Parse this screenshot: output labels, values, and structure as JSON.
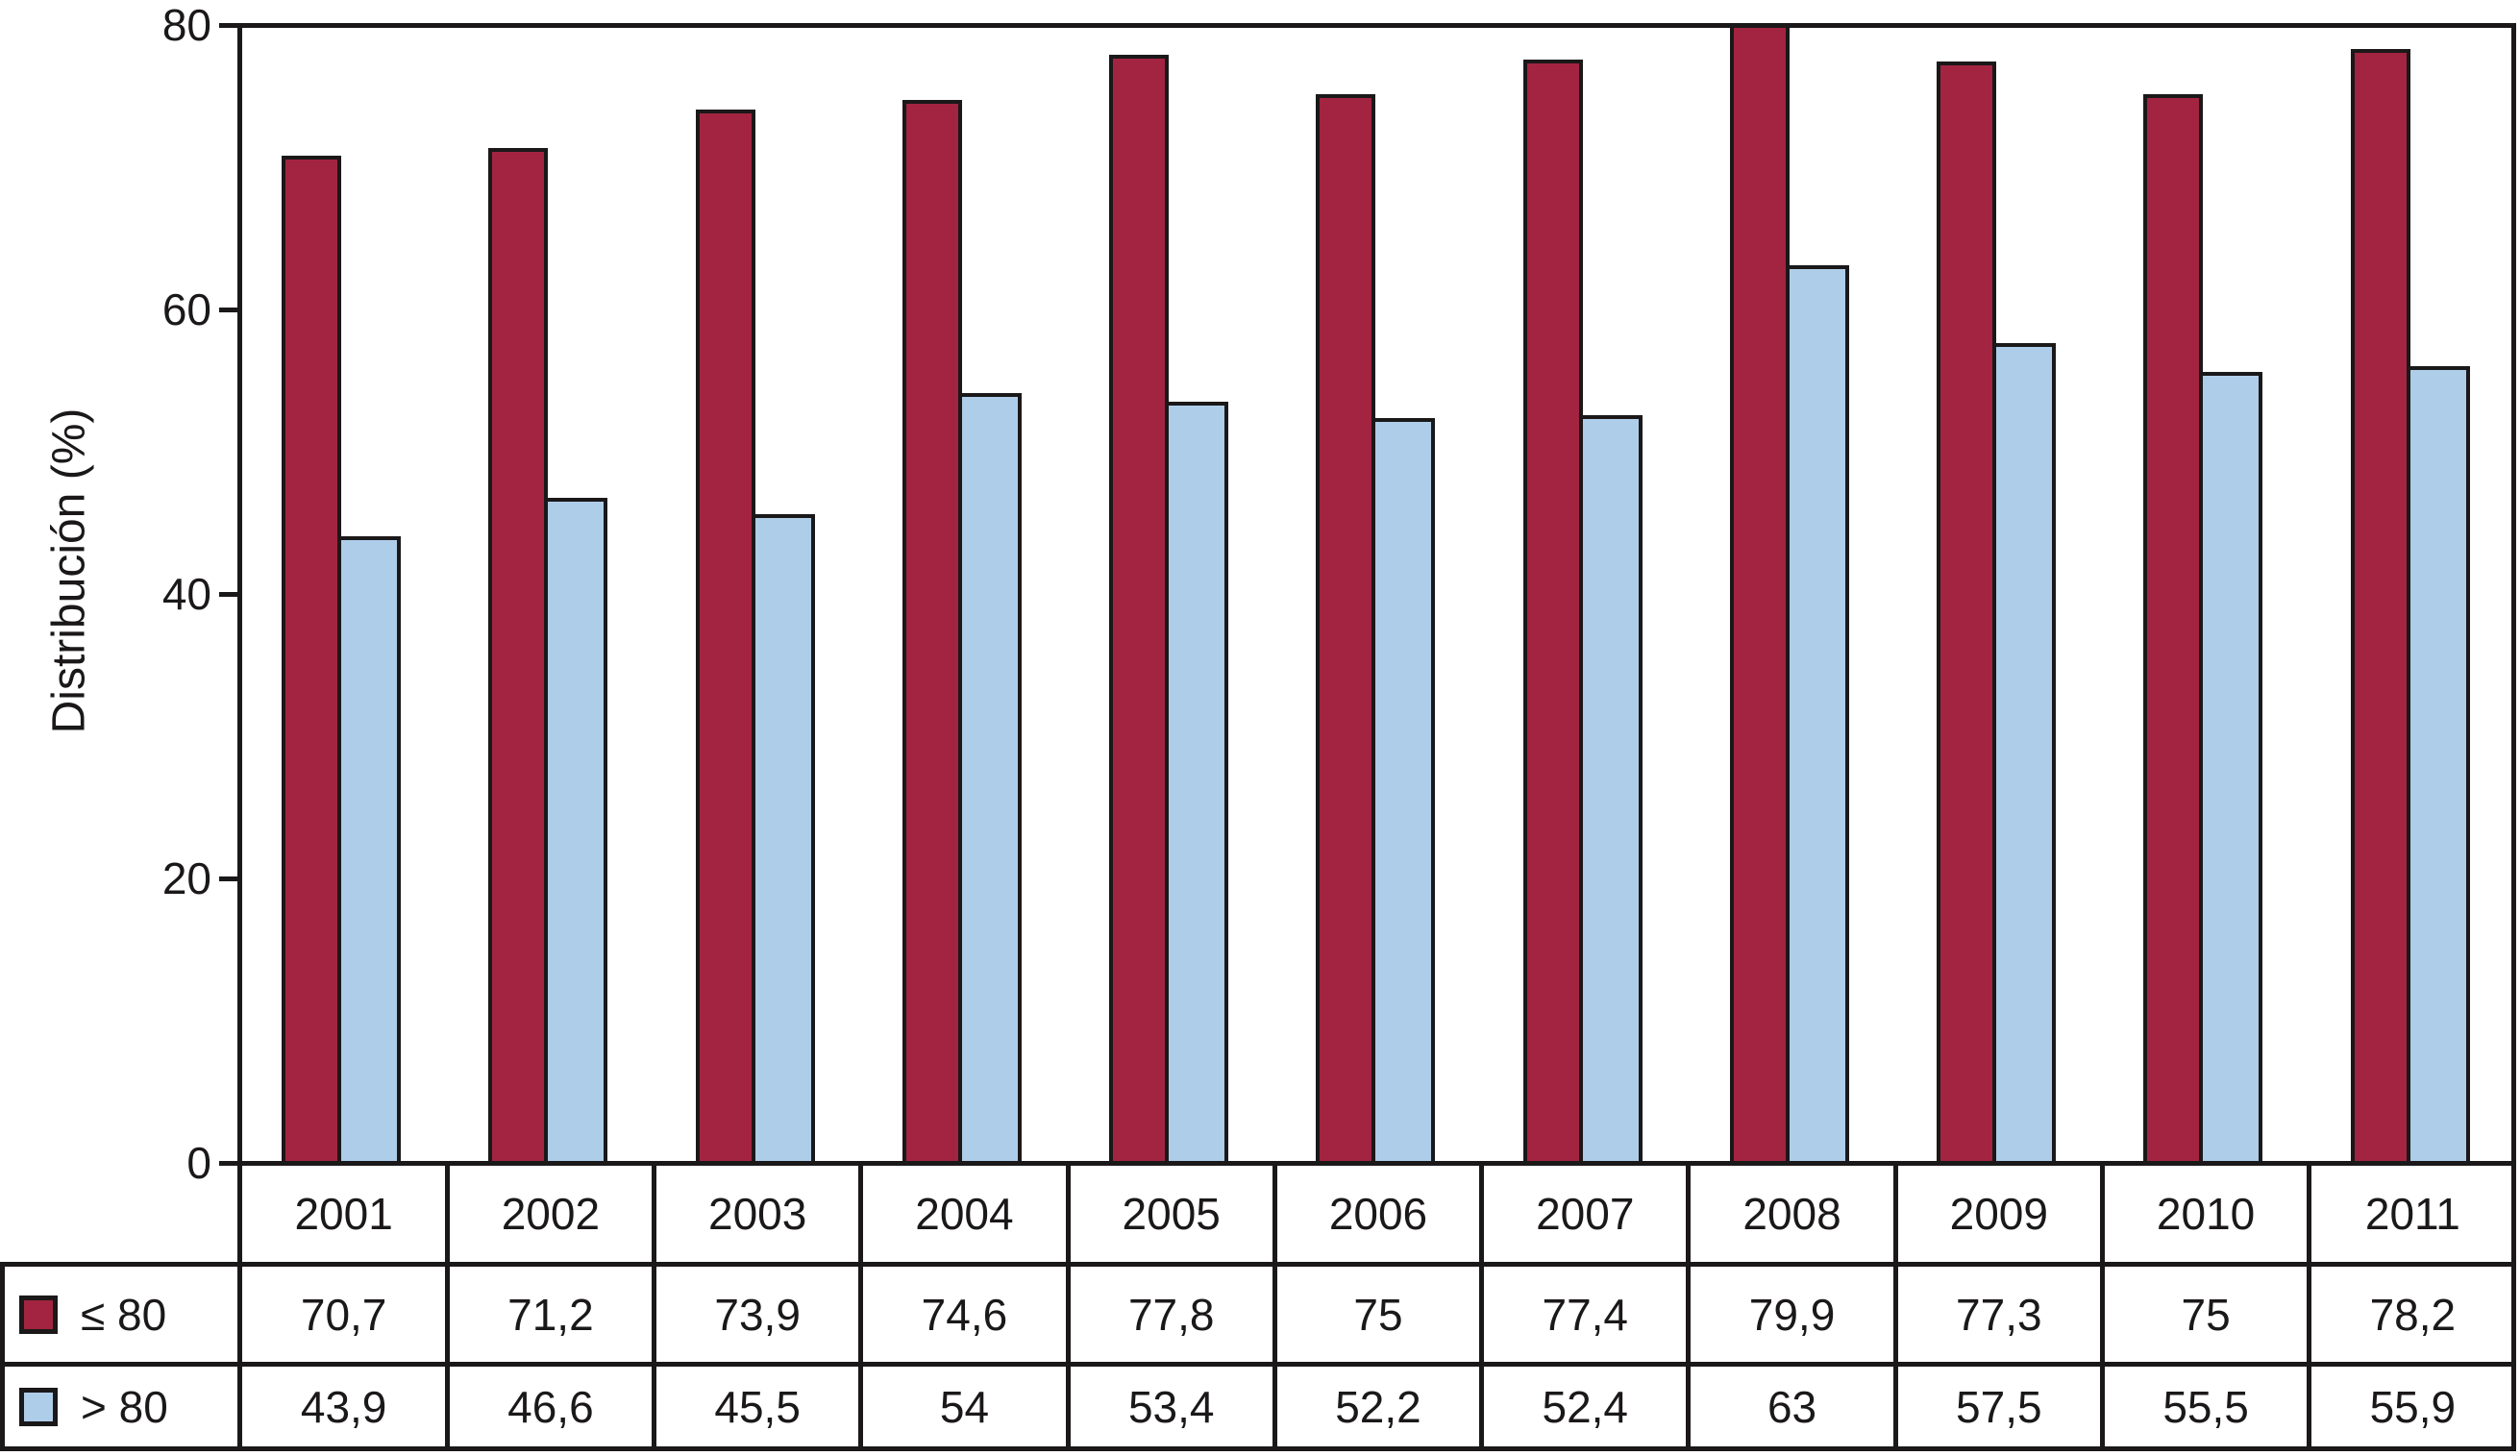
{
  "figure": {
    "y_axis": {
      "label": "Distribución (%)",
      "tick_labels": [
        "0",
        "20",
        "40",
        "60",
        "80"
      ],
      "tick_values": [
        0,
        20,
        40,
        60,
        80
      ],
      "max": 80
    },
    "colors": {
      "series_le80": "#A22440",
      "series_gt80": "#AECDE9",
      "line": "#1B1819",
      "background": "#FFFFFF"
    }
  },
  "chart_data": {
    "type": "bar",
    "categories": [
      "2001",
      "2002",
      "2003",
      "2004",
      "2005",
      "2006",
      "2007",
      "2008",
      "2009",
      "2010",
      "2011"
    ],
    "series": [
      {
        "name": "≤ 80",
        "color": "#A22440",
        "values": [
          70.7,
          71.2,
          73.9,
          74.6,
          77.8,
          75,
          77.4,
          79.9,
          77.3,
          75,
          78.2
        ],
        "labels": [
          "70,7",
          "71,2",
          "73,9",
          "74,6",
          "77,8",
          "75",
          "77,4",
          "79,9",
          "77,3",
          "75",
          "78,2"
        ]
      },
      {
        "name": "> 80",
        "color": "#AECDE9",
        "values": [
          43.9,
          46.6,
          45.5,
          54,
          53.4,
          52.2,
          52.4,
          63,
          57.5,
          55.5,
          55.9
        ],
        "labels": [
          "43,9",
          "46,6",
          "45,5",
          "54",
          "53,4",
          "52,2",
          "52,4",
          "63",
          "57,5",
          "55,5",
          "55,9"
        ]
      }
    ],
    "title": "",
    "xlabel": "",
    "ylabel": "Distribución (%)",
    "ylim": [
      0,
      80
    ],
    "yticks": [
      0,
      20,
      40,
      60,
      80
    ],
    "grid": false,
    "legend_position": "table-left",
    "value_table_shown": true,
    "decimal_separator": ","
  }
}
